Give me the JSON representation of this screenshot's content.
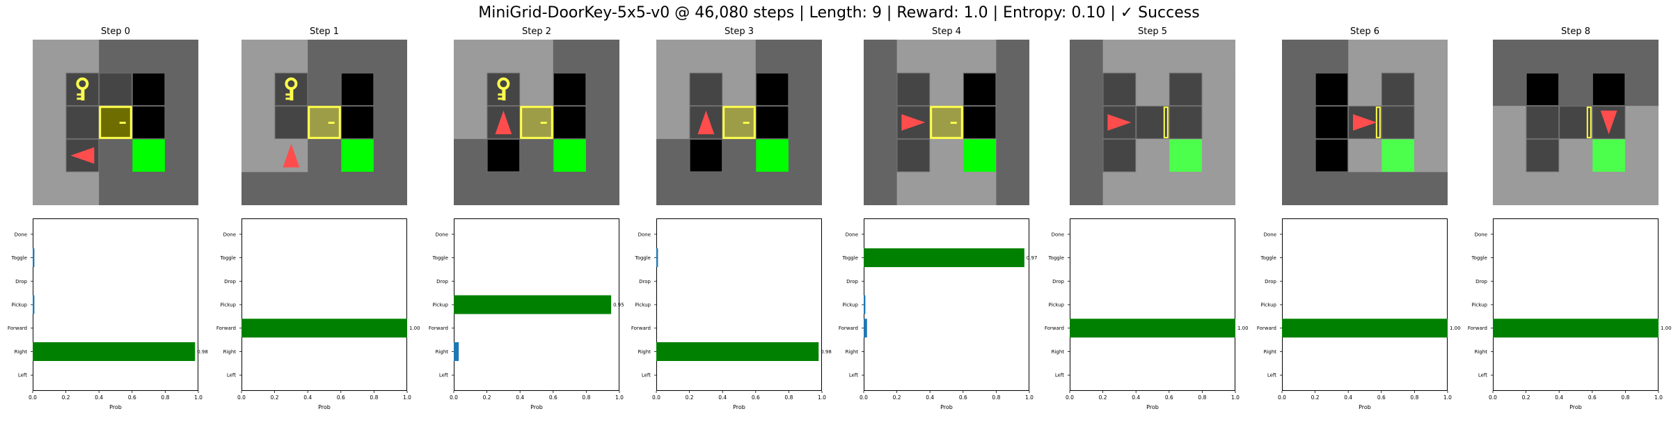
{
  "suptitle": "MiniGrid-DoorKey-5x5-v0 @ 46,080 steps | Length: 9 | Reward: 1.0 | Entropy: 0.10 | ✓ Success",
  "colors": {
    "wall": "#646464",
    "lit_wall": "#9b9b9b",
    "lit_floor": "#454545",
    "dark": "#000000",
    "goal": "#00ff00",
    "goal_lit": "#4dff4d",
    "key": "#ffff4d",
    "door": "#ffff4d",
    "door_fill_dark": "#6d6d00",
    "door_fill_lit": "#9d9d47",
    "agent": "#ff4d4d",
    "bar_chosen": "#008000",
    "bar_other": "#1f77b4",
    "grid_line": "#6e6e6e"
  },
  "steps": [
    {
      "title": "Step 0",
      "grid": {
        "bg": [
          "W",
          "W",
          "D",
          "D",
          "D",
          "W",
          "W",
          "D",
          "D",
          "D",
          "W",
          "W",
          "D",
          "D",
          "D",
          "W",
          "W",
          "D",
          "D",
          "D",
          "W",
          "W",
          "D",
          "D",
          "D"
        ],
        "cells": [
          {
            "r": 1,
            "c": 1,
            "t": "floor"
          },
          {
            "r": 1,
            "c": 2,
            "t": "floor"
          },
          {
            "r": 2,
            "c": 1,
            "t": "floor"
          },
          {
            "r": 2,
            "c": 2,
            "t": "floor"
          },
          {
            "r": 3,
            "c": 1,
            "t": "floor"
          },
          {
            "r": 1,
            "c": 1,
            "t": "key"
          },
          {
            "r": 2,
            "c": 2,
            "t": "door_locked_dark"
          },
          {
            "r": 1,
            "c": 3,
            "t": "black"
          },
          {
            "r": 2,
            "c": 3,
            "t": "black"
          },
          {
            "r": 3,
            "c": 3,
            "t": "goal"
          },
          {
            "r": 3,
            "c": 1,
            "t": "agent",
            "dir": "left"
          }
        ]
      },
      "chart_data": {
        "type": "bar",
        "orientation": "horizontal",
        "categories": [
          "Left",
          "Right",
          "Forward",
          "Pickup",
          "Drop",
          "Toggle",
          "Done"
        ],
        "values": [
          0.0,
          0.98,
          0.0,
          0.01,
          0.0,
          0.01,
          0.0
        ],
        "chosen": "Right",
        "value_label": "0.98",
        "xlabel": "Prob",
        "xlim": [
          0,
          1
        ],
        "xticks": [
          "0.0",
          "0.2",
          "0.4",
          "0.6",
          "0.8",
          "1.0"
        ]
      }
    },
    {
      "title": "Step 1",
      "grid": {
        "bg": [
          "W",
          "W",
          "D",
          "D",
          "D",
          "W",
          "W",
          "D",
          "D",
          "D",
          "W",
          "W",
          "D",
          "D",
          "D",
          "W",
          "W",
          "D",
          "D",
          "D",
          "D",
          "D",
          "D",
          "D",
          "D"
        ],
        "cells": [
          {
            "r": 1,
            "c": 1,
            "t": "floor"
          },
          {
            "r": 2,
            "c": 1,
            "t": "floor"
          },
          {
            "r": 2,
            "c": 2,
            "t": "floor"
          },
          {
            "r": 1,
            "c": 1,
            "t": "key"
          },
          {
            "r": 2,
            "c": 2,
            "t": "door_locked_lit"
          },
          {
            "r": 1,
            "c": 3,
            "t": "black"
          },
          {
            "r": 2,
            "c": 3,
            "t": "black"
          },
          {
            "r": 3,
            "c": 3,
            "t": "goal"
          },
          {
            "r": 3,
            "c": 1,
            "t": "agent",
            "dir": "up"
          }
        ]
      },
      "chart_data": {
        "type": "bar",
        "orientation": "horizontal",
        "categories": [
          "Left",
          "Right",
          "Forward",
          "Pickup",
          "Drop",
          "Toggle",
          "Done"
        ],
        "values": [
          0.0,
          0.0,
          1.0,
          0.0,
          0.0,
          0.0,
          0.0
        ],
        "chosen": "Forward",
        "value_label": "1.00",
        "xlabel": "Prob",
        "xlim": [
          0,
          1
        ],
        "xticks": [
          "0.0",
          "0.2",
          "0.4",
          "0.6",
          "0.8",
          "1.0"
        ]
      }
    },
    {
      "title": "Step 2",
      "grid": {
        "bg": [
          "W",
          "W",
          "W",
          "D",
          "D",
          "W",
          "W",
          "W",
          "D",
          "D",
          "W",
          "W",
          "W",
          "D",
          "D",
          "D",
          "D",
          "D",
          "D",
          "D",
          "D",
          "D",
          "D",
          "D",
          "D"
        ],
        "cells": [
          {
            "r": 1,
            "c": 1,
            "t": "floor"
          },
          {
            "r": 2,
            "c": 1,
            "t": "floor"
          },
          {
            "r": 1,
            "c": 1,
            "t": "key"
          },
          {
            "r": 2,
            "c": 2,
            "t": "door_locked_lit"
          },
          {
            "r": 1,
            "c": 3,
            "t": "black"
          },
          {
            "r": 2,
            "c": 3,
            "t": "black"
          },
          {
            "r": 3,
            "c": 1,
            "t": "black"
          },
          {
            "r": 3,
            "c": 3,
            "t": "goal"
          },
          {
            "r": 2,
            "c": 1,
            "t": "agent",
            "dir": "up"
          }
        ]
      },
      "chart_data": {
        "type": "bar",
        "orientation": "horizontal",
        "categories": [
          "Left",
          "Right",
          "Forward",
          "Pickup",
          "Drop",
          "Toggle",
          "Done"
        ],
        "values": [
          0.0,
          0.03,
          0.0,
          0.95,
          0.0,
          0.0,
          0.0
        ],
        "chosen": "Pickup",
        "value_label": "0.95",
        "xlabel": "Prob",
        "xlim": [
          0,
          1
        ],
        "xticks": [
          "0.0",
          "0.2",
          "0.4",
          "0.6",
          "0.8",
          "1.0"
        ]
      }
    },
    {
      "title": "Step 3",
      "grid": {
        "bg": [
          "W",
          "W",
          "W",
          "D",
          "D",
          "W",
          "W",
          "W",
          "D",
          "D",
          "W",
          "W",
          "W",
          "D",
          "D",
          "D",
          "D",
          "D",
          "D",
          "D",
          "D",
          "D",
          "D",
          "D",
          "D"
        ],
        "cells": [
          {
            "r": 1,
            "c": 1,
            "t": "floor"
          },
          {
            "r": 2,
            "c": 1,
            "t": "floor"
          },
          {
            "r": 2,
            "c": 2,
            "t": "door_locked_lit"
          },
          {
            "r": 1,
            "c": 3,
            "t": "black"
          },
          {
            "r": 2,
            "c": 3,
            "t": "black"
          },
          {
            "r": 3,
            "c": 1,
            "t": "black"
          },
          {
            "r": 3,
            "c": 3,
            "t": "goal"
          },
          {
            "r": 2,
            "c": 1,
            "t": "agent",
            "dir": "up"
          }
        ]
      },
      "chart_data": {
        "type": "bar",
        "orientation": "horizontal",
        "categories": [
          "Left",
          "Right",
          "Forward",
          "Pickup",
          "Drop",
          "Toggle",
          "Done"
        ],
        "values": [
          0.0,
          0.98,
          0.0,
          0.0,
          0.0,
          0.01,
          0.0
        ],
        "chosen": "Right",
        "value_label": "0.98",
        "xlabel": "Prob",
        "xlim": [
          0,
          1
        ],
        "xticks": [
          "0.0",
          "0.2",
          "0.4",
          "0.6",
          "0.8",
          "1.0"
        ]
      }
    },
    {
      "title": "Step 4",
      "grid": {
        "bg": [
          "D",
          "W",
          "W",
          "W",
          "D",
          "D",
          "W",
          "W",
          "W",
          "D",
          "D",
          "W",
          "W",
          "W",
          "D",
          "D",
          "W",
          "W",
          "W",
          "D",
          "D",
          "W",
          "W",
          "W",
          "D"
        ],
        "cells": [
          {
            "r": 1,
            "c": 1,
            "t": "floor"
          },
          {
            "r": 2,
            "c": 1,
            "t": "floor"
          },
          {
            "r": 3,
            "c": 1,
            "t": "floor"
          },
          {
            "r": 2,
            "c": 2,
            "t": "door_locked_lit"
          },
          {
            "r": 1,
            "c": 3,
            "t": "black"
          },
          {
            "r": 2,
            "c": 3,
            "t": "black"
          },
          {
            "r": 3,
            "c": 3,
            "t": "goal"
          },
          {
            "r": 2,
            "c": 1,
            "t": "agent",
            "dir": "right"
          }
        ]
      },
      "chart_data": {
        "type": "bar",
        "orientation": "horizontal",
        "categories": [
          "Left",
          "Right",
          "Forward",
          "Pickup",
          "Drop",
          "Toggle",
          "Done"
        ],
        "values": [
          0.0,
          0.0,
          0.02,
          0.01,
          0.0,
          0.97,
          0.0
        ],
        "chosen": "Toggle",
        "value_label": "0.97",
        "xlabel": "Prob",
        "xlim": [
          0,
          1
        ],
        "xticks": [
          "0.0",
          "0.2",
          "0.4",
          "0.6",
          "0.8",
          "1.0"
        ]
      }
    },
    {
      "title": "Step 5",
      "grid": {
        "bg": [
          "D",
          "W",
          "W",
          "W",
          "W",
          "D",
          "W",
          "W",
          "W",
          "W",
          "D",
          "W",
          "W",
          "W",
          "W",
          "D",
          "W",
          "W",
          "W",
          "W",
          "D",
          "W",
          "W",
          "W",
          "W"
        ],
        "cells": [
          {
            "r": 1,
            "c": 1,
            "t": "floor"
          },
          {
            "r": 1,
            "c": 3,
            "t": "floor"
          },
          {
            "r": 2,
            "c": 1,
            "t": "floor"
          },
          {
            "r": 2,
            "c": 2,
            "t": "floor"
          },
          {
            "r": 2,
            "c": 3,
            "t": "floor"
          },
          {
            "r": 3,
            "c": 1,
            "t": "floor"
          },
          {
            "r": 2,
            "c": 2,
            "t": "door_open"
          },
          {
            "r": 3,
            "c": 3,
            "t": "goal_lit"
          },
          {
            "r": 2,
            "c": 1,
            "t": "agent",
            "dir": "right"
          }
        ]
      },
      "chart_data": {
        "type": "bar",
        "orientation": "horizontal",
        "categories": [
          "Left",
          "Right",
          "Forward",
          "Pickup",
          "Drop",
          "Toggle",
          "Done"
        ],
        "values": [
          0.0,
          0.0,
          1.0,
          0.0,
          0.0,
          0.0,
          0.0
        ],
        "chosen": "Forward",
        "value_label": "1.00",
        "xlabel": "Prob",
        "xlim": [
          0,
          1
        ],
        "xticks": [
          "0.0",
          "0.2",
          "0.4",
          "0.6",
          "0.8",
          "1.0"
        ]
      }
    },
    {
      "title": "Step 6",
      "grid": {
        "bg": [
          "D",
          "D",
          "W",
          "W",
          "W",
          "D",
          "D",
          "W",
          "W",
          "W",
          "D",
          "D",
          "W",
          "W",
          "W",
          "D",
          "D",
          "W",
          "W",
          "W",
          "D",
          "D",
          "D",
          "D",
          "D"
        ],
        "cells": [
          {
            "r": 1,
            "c": 1,
            "t": "black"
          },
          {
            "r": 2,
            "c": 1,
            "t": "black"
          },
          {
            "r": 3,
            "c": 1,
            "t": "black"
          },
          {
            "r": 1,
            "c": 3,
            "t": "floor"
          },
          {
            "r": 2,
            "c": 2,
            "t": "floor"
          },
          {
            "r": 2,
            "c": 3,
            "t": "floor"
          },
          {
            "r": 2,
            "c": 2,
            "t": "door_open"
          },
          {
            "r": 3,
            "c": 3,
            "t": "goal_lit"
          },
          {
            "r": 2,
            "c": 2,
            "t": "agent",
            "dir": "right"
          }
        ]
      },
      "chart_data": {
        "type": "bar",
        "orientation": "horizontal",
        "categories": [
          "Left",
          "Right",
          "Forward",
          "Pickup",
          "Drop",
          "Toggle",
          "Done"
        ],
        "values": [
          0.0,
          0.0,
          1.0,
          0.0,
          0.0,
          0.0,
          0.0
        ],
        "chosen": "Forward",
        "value_label": "1.00",
        "xlabel": "Prob",
        "xlim": [
          0,
          1
        ],
        "xticks": [
          "0.0",
          "0.2",
          "0.4",
          "0.6",
          "0.8",
          "1.0"
        ]
      }
    },
    {
      "title": "Step 8",
      "grid": {
        "bg": [
          "D",
          "D",
          "D",
          "D",
          "D",
          "D",
          "D",
          "D",
          "D",
          "D",
          "W",
          "W",
          "W",
          "W",
          "W",
          "W",
          "W",
          "W",
          "W",
          "W",
          "W",
          "W",
          "W",
          "W",
          "W"
        ],
        "cells": [
          {
            "r": 1,
            "c": 1,
            "t": "black"
          },
          {
            "r": 1,
            "c": 3,
            "t": "black"
          },
          {
            "r": 2,
            "c": 1,
            "t": "floor"
          },
          {
            "r": 2,
            "c": 2,
            "t": "floor"
          },
          {
            "r": 2,
            "c": 3,
            "t": "floor"
          },
          {
            "r": 3,
            "c": 1,
            "t": "floor"
          },
          {
            "r": 2,
            "c": 2,
            "t": "door_open"
          },
          {
            "r": 3,
            "c": 3,
            "t": "goal_lit"
          },
          {
            "r": 2,
            "c": 3,
            "t": "agent",
            "dir": "down"
          }
        ]
      },
      "chart_data": {
        "type": "bar",
        "orientation": "horizontal",
        "categories": [
          "Left",
          "Right",
          "Forward",
          "Pickup",
          "Drop",
          "Toggle",
          "Done"
        ],
        "values": [
          0.0,
          0.0,
          1.0,
          0.0,
          0.0,
          0.0,
          0.0
        ],
        "chosen": "Forward",
        "value_label": "1.00",
        "xlabel": "Prob",
        "xlim": [
          0,
          1
        ],
        "xticks": [
          "0.0",
          "0.2",
          "0.4",
          "0.6",
          "0.8",
          "1.0"
        ]
      }
    }
  ]
}
